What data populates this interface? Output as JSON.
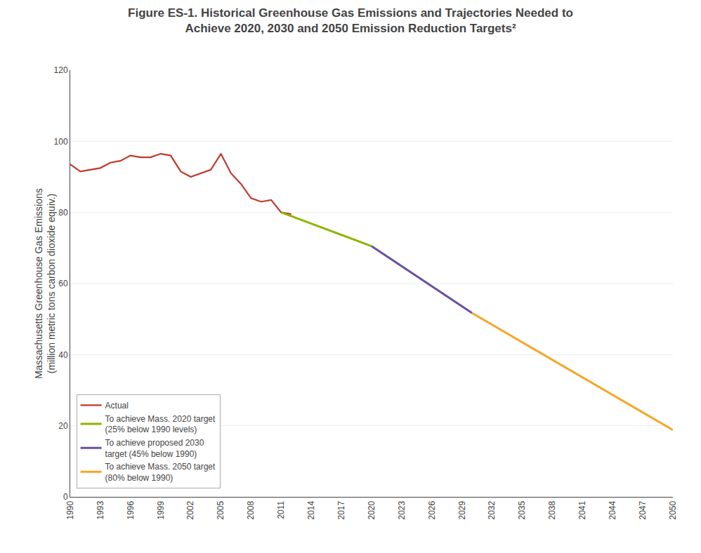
{
  "chart_data": {
    "type": "line",
    "title": "Figure ES-1. Historical Greenhouse Gas Emissions and Trajectories Needed to\nAchieve 2020, 2030 and 2050 Emission Reduction Targets²",
    "ylabel": "Massachusetts Greenhouse Gas Emissions\n(million metric tons carbon dioxide equiv.)",
    "xlim": [
      1990,
      2050
    ],
    "xticks": [
      1990,
      1993,
      1996,
      1999,
      2002,
      2005,
      2008,
      2011,
      2014,
      2017,
      2020,
      2023,
      2026,
      2029,
      2032,
      2035,
      2038,
      2041,
      2044,
      2047,
      2050
    ],
    "ylim": [
      0,
      120
    ],
    "yticks": [
      0,
      20,
      40,
      60,
      80,
      100,
      120
    ],
    "grid": "y",
    "legend": "lower left",
    "series": [
      {
        "name": "Actual",
        "color": "#c0392b",
        "x": [
          1990,
          1991,
          1992,
          1993,
          1994,
          1995,
          1996,
          1997,
          1998,
          1999,
          2000,
          2001,
          2002,
          2003,
          2004,
          2005,
          2006,
          2007,
          2008,
          2009,
          2010,
          2011,
          2012
        ],
        "values": [
          93.5,
          91.5,
          92.0,
          92.5,
          94.0,
          94.5,
          96.0,
          95.5,
          95.5,
          96.5,
          96.0,
          91.5,
          90.0,
          91.0,
          92.0,
          96.5,
          91.0,
          88.0,
          84.0,
          83.0,
          83.5,
          80.0,
          79.5
        ]
      },
      {
        "name": "To achieve Mass. 2020 target\n(25% below 1990 levels)",
        "color": "#8db600",
        "x": [
          2011,
          2020
        ],
        "values": [
          80.0,
          70.5
        ]
      },
      {
        "name": "To achieve proposed 2030\ntarget (45% below 1990)",
        "color": "#6a4fa3",
        "x": [
          2020,
          2030
        ],
        "values": [
          70.5,
          51.7
        ]
      },
      {
        "name": "To achieve Mass. 2050 target\n(80% below 1990)",
        "color": "#f5a623",
        "x": [
          2030,
          2050
        ],
        "values": [
          51.7,
          18.8
        ]
      }
    ]
  }
}
